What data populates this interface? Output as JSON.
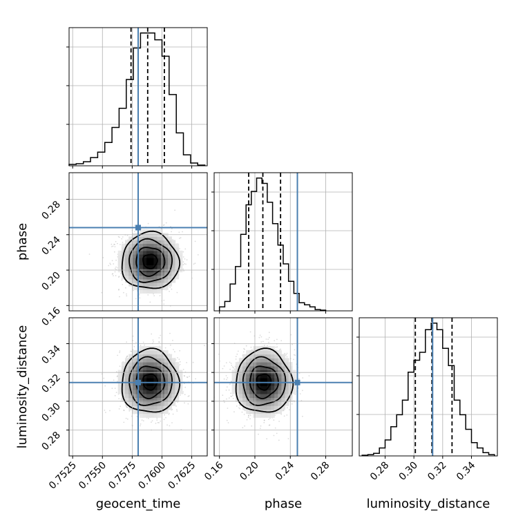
{
  "chart_data": {
    "type": "corner",
    "parameters": [
      "geocent_time",
      "phase",
      "luminosity_distance"
    ],
    "axis_labels": {
      "x": [
        "geocent_time",
        "phase",
        "luminosity_distance"
      ],
      "y": [
        "",
        "phase",
        "luminosity_distance"
      ]
    },
    "ranges": {
      "geocent_time": [
        0.7522,
        0.7638
      ],
      "phase": [
        0.154,
        0.31
      ],
      "luminosity_distance": [
        0.262,
        0.358
      ]
    },
    "ticks": {
      "geocent_time": [
        0.7525,
        0.755,
        0.7575,
        0.76,
        0.7625
      ],
      "phase": [
        0.16,
        0.2,
        0.24,
        0.28
      ],
      "luminosity_distance": [
        0.28,
        0.3,
        0.32,
        0.34
      ]
    },
    "tick_labels": {
      "geocent_time": [
        "0.7525",
        "0.7550",
        "0.7575",
        "0.7600",
        "0.7625"
      ],
      "phase": [
        "0.16",
        "0.20",
        "0.24",
        "0.28"
      ],
      "luminosity_distance": [
        "0.28",
        "0.30",
        "0.32",
        "0.34"
      ]
    },
    "truths": {
      "geocent_time": 0.758,
      "phase": 0.248,
      "luminosity_distance": 0.313
    },
    "quantiles": {
      "geocent_time": [
        0.7574,
        0.7588,
        0.7602
      ],
      "phase": [
        0.193,
        0.209,
        0.229
      ],
      "luminosity_distance": [
        0.301,
        0.3125,
        0.3265
      ]
    },
    "posterior_means": {
      "geocent_time": 0.759,
      "phase": 0.21,
      "luminosity_distance": 0.3135
    },
    "posterior_sigmas": {
      "geocent_time": 0.0012,
      "phase": 0.016,
      "luminosity_distance": 0.011
    },
    "histograms": {
      "geocent_time": {
        "edges": [
          0.7522,
          0.7528,
          0.7534,
          0.754,
          0.7546,
          0.7552,
          0.7558,
          0.7564,
          0.757,
          0.7576,
          0.7582,
          0.7588,
          0.7594,
          0.76,
          0.7606,
          0.7612,
          0.7618,
          0.7624,
          0.763,
          0.7636
        ],
        "counts": [
          0.01,
          0.015,
          0.03,
          0.06,
          0.1,
          0.17,
          0.28,
          0.42,
          0.63,
          0.86,
          0.97,
          0.97,
          0.92,
          0.8,
          0.52,
          0.24,
          0.08,
          0.02,
          0.005
        ]
      },
      "phase": {
        "edges": [
          0.16,
          0.166,
          0.172,
          0.178,
          0.184,
          0.19,
          0.196,
          0.202,
          0.208,
          0.214,
          0.22,
          0.226,
          0.232,
          0.238,
          0.244,
          0.25,
          0.256,
          0.262,
          0.268,
          0.274,
          0.28
        ],
        "counts": [
          0.03,
          0.07,
          0.2,
          0.33,
          0.57,
          0.79,
          0.89,
          0.99,
          0.95,
          0.81,
          0.65,
          0.49,
          0.35,
          0.22,
          0.13,
          0.06,
          0.045,
          0.03,
          0.01,
          0.005
        ]
      },
      "luminosity_distance": {
        "edges": [
          0.264,
          0.268,
          0.272,
          0.276,
          0.28,
          0.284,
          0.288,
          0.292,
          0.296,
          0.3,
          0.304,
          0.308,
          0.312,
          0.316,
          0.32,
          0.324,
          0.328,
          0.332,
          0.336,
          0.34,
          0.344,
          0.348,
          0.352,
          0.356
        ],
        "counts": [
          0.005,
          0.01,
          0.02,
          0.06,
          0.12,
          0.22,
          0.31,
          0.42,
          0.63,
          0.72,
          0.78,
          0.95,
          1.0,
          0.95,
          0.81,
          0.68,
          0.42,
          0.31,
          0.2,
          0.1,
          0.06,
          0.025,
          0.01
        ]
      }
    },
    "colors": {
      "truth": "#4a7fb0",
      "hist": "#000000",
      "quantile": "#000000",
      "grid": "#b0b0b0",
      "density_dark": "#000000",
      "points": "#999999"
    },
    "grid": true
  }
}
